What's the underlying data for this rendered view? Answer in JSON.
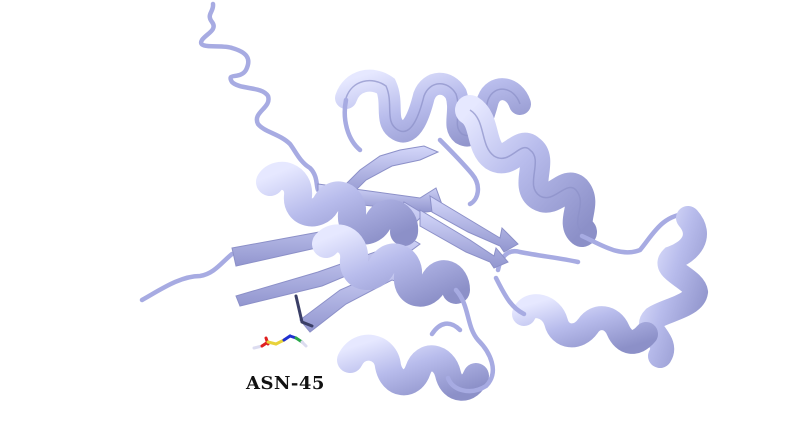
{
  "residue": {
    "label": "ASN-45"
  },
  "colors": {
    "background": "#ffffff",
    "cartoon": "#b8bcec",
    "cartoon_shadow": "#8c90c8",
    "cartoon_highlight": "#e6e8ff",
    "carbon": "#e8d23a",
    "oxygen": "#e02020",
    "nitrogen": "#2030d0",
    "terminal": "#2aa84a",
    "hydrogen": "#dcdcf0"
  }
}
